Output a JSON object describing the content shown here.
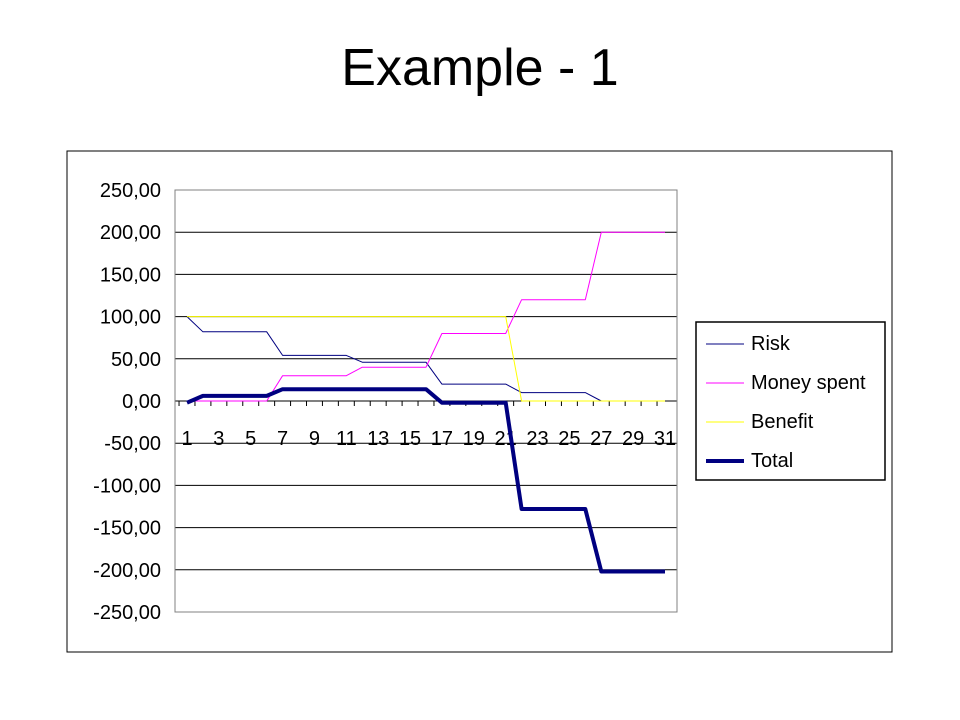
{
  "slide": {
    "title": "Example - 1"
  },
  "chart_data": {
    "type": "line",
    "x": [
      1,
      2,
      3,
      4,
      5,
      6,
      7,
      8,
      9,
      10,
      11,
      12,
      13,
      14,
      15,
      16,
      17,
      18,
      19,
      20,
      21,
      22,
      23,
      24,
      25,
      26,
      27,
      28,
      29,
      30,
      31
    ],
    "x_tick_labels": [
      "1",
      "3",
      "5",
      "7",
      "9",
      "11",
      "13",
      "15",
      "17",
      "19",
      "21",
      "23",
      "25",
      "27",
      "29",
      "31"
    ],
    "ylim": [
      -250,
      250
    ],
    "y_ticks": [
      250,
      200,
      150,
      100,
      50,
      0,
      -50,
      -100,
      -150,
      -200,
      -250
    ],
    "y_tick_labels": [
      "250,00",
      "200,00",
      "150,00",
      "100,00",
      "50,00",
      "0,00",
      "-50,00",
      "-100,00",
      "-150,00",
      "-200,00",
      "-250,00"
    ],
    "grid": true,
    "legend_position": "right",
    "series": [
      {
        "name": "Risk",
        "color": "#000080",
        "width": 1,
        "values": [
          100,
          82,
          82,
          82,
          82,
          82,
          54,
          54,
          54,
          54,
          54,
          46,
          46,
          46,
          46,
          46,
          20,
          20,
          20,
          20,
          20,
          10,
          10,
          10,
          10,
          10,
          0,
          0,
          0,
          0,
          0
        ]
      },
      {
        "name": "Money spent",
        "color": "#ff00ff",
        "width": 1,
        "values": [
          0,
          0,
          0,
          0,
          0,
          0,
          30,
          30,
          30,
          30,
          30,
          40,
          40,
          40,
          40,
          40,
          80,
          80,
          80,
          80,
          80,
          120,
          120,
          120,
          120,
          120,
          200,
          200,
          200,
          200,
          200
        ]
      },
      {
        "name": "Benefit",
        "color": "#ffff00",
        "width": 1,
        "values": [
          100,
          100,
          100,
          100,
          100,
          100,
          100,
          100,
          100,
          100,
          100,
          100,
          100,
          100,
          100,
          100,
          100,
          100,
          100,
          100,
          100,
          0,
          0,
          0,
          0,
          0,
          0,
          0,
          0,
          0,
          0
        ]
      },
      {
        "name": "Total",
        "color": "#000080",
        "width": 4,
        "values": [
          -2,
          6,
          6,
          6,
          6,
          6,
          14,
          14,
          14,
          14,
          14,
          14,
          14,
          14,
          14,
          14,
          -2,
          -2,
          -2,
          -2,
          -2,
          -128,
          -128,
          -128,
          -128,
          -128,
          -202,
          -202,
          -202,
          -202,
          -202
        ]
      }
    ]
  }
}
